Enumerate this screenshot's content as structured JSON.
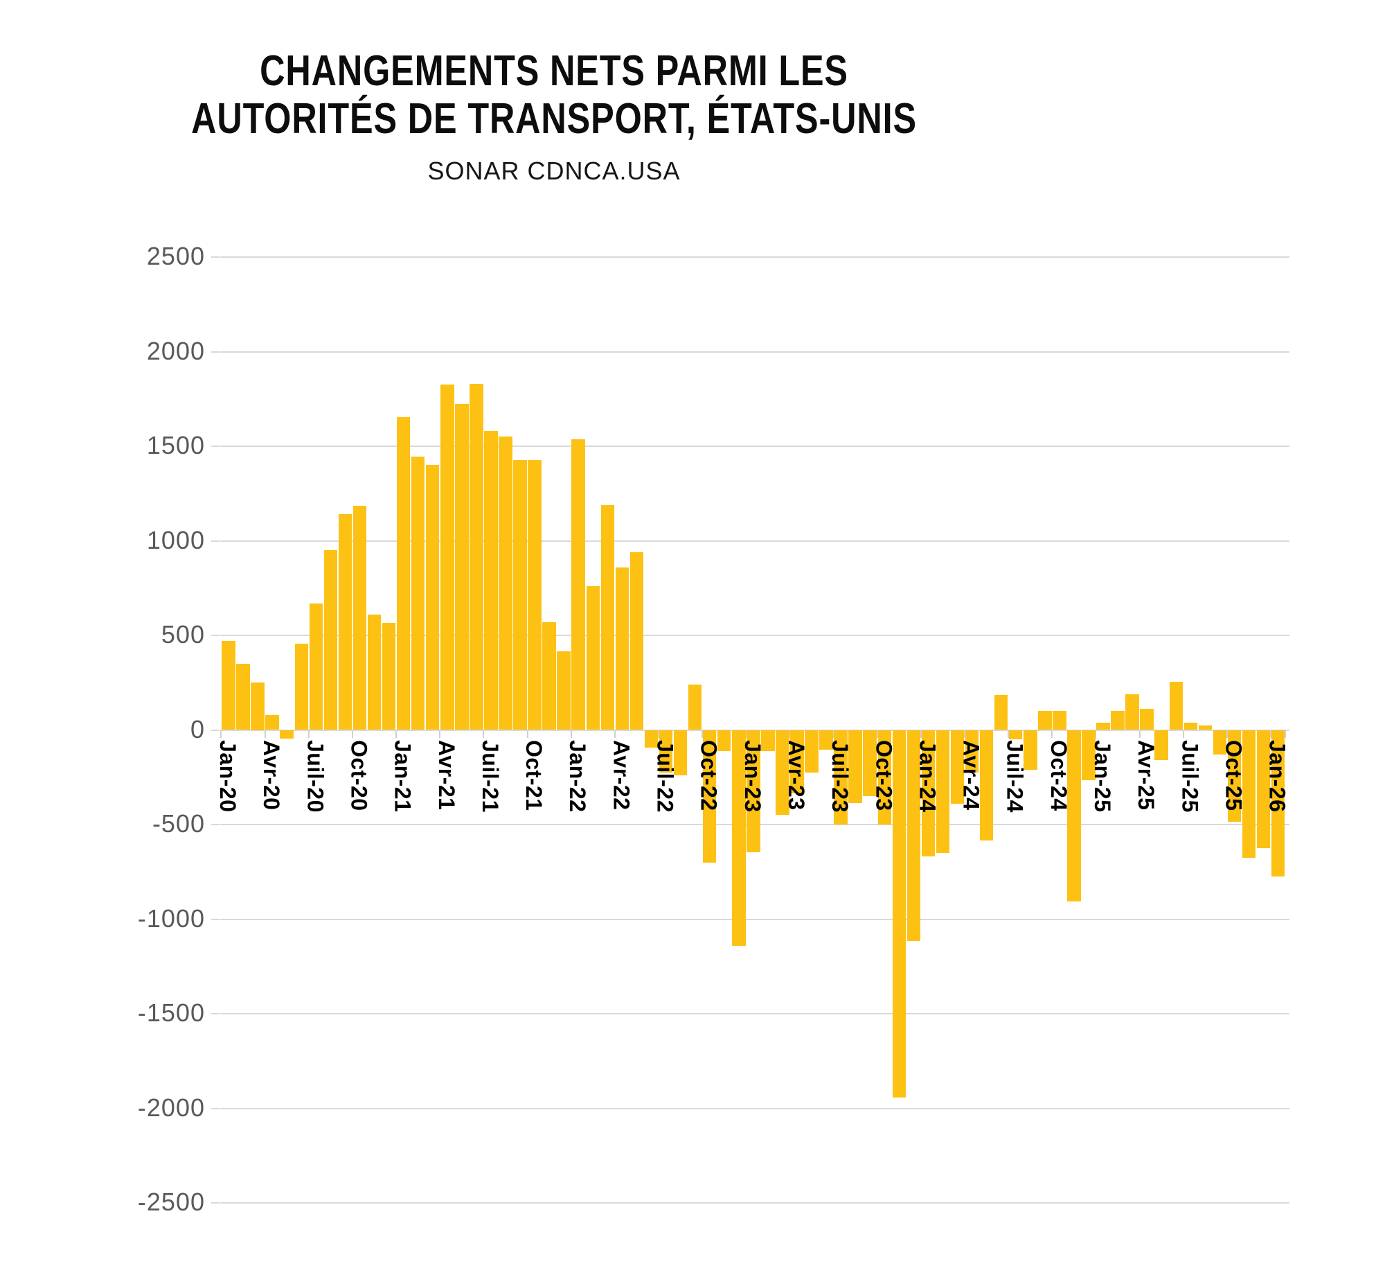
{
  "header": {
    "title_line1": "CHANGEMENTS NETS PARMI LES",
    "title_line2": "AUTORITÉS DE TRANSPORT, ÉTATS-UNIS",
    "subtitle": "SONAR CDNCA.USA"
  },
  "chart_data": {
    "type": "bar",
    "title": "CHANGEMENTS NETS PARMI LES AUTORITÉS DE TRANSPORT, ÉTATS-UNIS",
    "subtitle": "SONAR CDNCA.USA",
    "xlabel": "",
    "ylabel": "",
    "ylim": [
      -2500,
      2500
    ],
    "grid": true,
    "legend_position": "none",
    "bar_color": "#fcc113",
    "gridline_color": "#d9d9d9",
    "y_tick_color": "#595959",
    "x_tick_color": "#000000",
    "y_ticks": [
      2500,
      2000,
      1500,
      1000,
      500,
      0,
      -500,
      -1000,
      -1500,
      -2000,
      -2500
    ],
    "x_tick_every": 3,
    "x_tick_labels": [
      "Jan-20",
      "Avr-20",
      "Juil-20",
      "Oct-20",
      "Jan-21",
      "Avr-21",
      "Juil-21",
      "Oct-21",
      "Jan-22",
      "Avr-22",
      "Juil-22",
      "Oct-22",
      "Jan-23",
      "Avr-23",
      "Juil-23",
      "Oct-23",
      "Jan-24",
      "Avr-24",
      "Juil-24",
      "Oct-24",
      "Jan-25",
      "Avr-25",
      "Juil-25",
      "Oct-25",
      "Jan-26"
    ],
    "values": [
      470,
      350,
      250,
      80,
      -45,
      455,
      670,
      950,
      1140,
      1185,
      610,
      565,
      1655,
      1445,
      1400,
      1825,
      1725,
      1830,
      1580,
      1550,
      1425,
      1425,
      570,
      415,
      1535,
      760,
      1190,
      860,
      940,
      -95,
      -225,
      -240,
      240,
      -700,
      -110,
      -1140,
      -645,
      -110,
      -450,
      -335,
      -225,
      -105,
      -500,
      -385,
      -350,
      -500,
      -1945,
      -1115,
      -670,
      -650,
      -390,
      -225,
      -585,
      185,
      -50,
      -210,
      100,
      100,
      -905,
      -265,
      40,
      100,
      190,
      110,
      -160,
      255,
      40,
      25,
      -130,
      -485,
      -675,
      -625,
      -775
    ]
  }
}
